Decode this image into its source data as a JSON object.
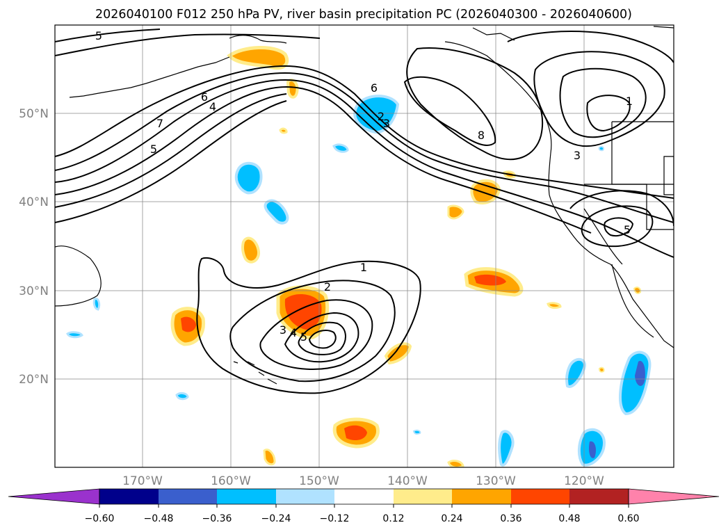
{
  "title": "2026040100 F012 250 hPa PV, river basin precipitation PC (2026040300 - 2026040600)",
  "map": {
    "lat_labels": [
      "50°N",
      "40°N",
      "30°N",
      "20°N"
    ],
    "lon_labels": [
      "170°W",
      "160°W",
      "150°W",
      "140°W",
      "130°W",
      "120°W"
    ]
  },
  "contour_labels": {
    "five_nw": "5",
    "six_w": "6",
    "four_w": "4",
    "seven_w": "7",
    "five_w": "5",
    "six_c": "6",
    "two_c": "2",
    "three_c": "3",
    "eight": "8",
    "three_e": "3",
    "one_ne": "1",
    "five_se": "5",
    "one_s": "1",
    "two_s": "2",
    "three_s": "3",
    "four_s": "4",
    "five_s": "5"
  },
  "colorbar": {
    "ticks": [
      "−0.60",
      "−0.48",
      "−0.36",
      "−0.24",
      "−0.12",
      "0.12",
      "0.24",
      "0.36",
      "0.48",
      "0.60"
    ],
    "colors": [
      "#9a32cd",
      "#00008b",
      "#3a5fcd",
      "#00bfff",
      "#b0e2ff",
      "#ffffff",
      "#ffec8b",
      "#ffa500",
      "#ff4500",
      "#b22222",
      "#ff82ab"
    ]
  }
}
